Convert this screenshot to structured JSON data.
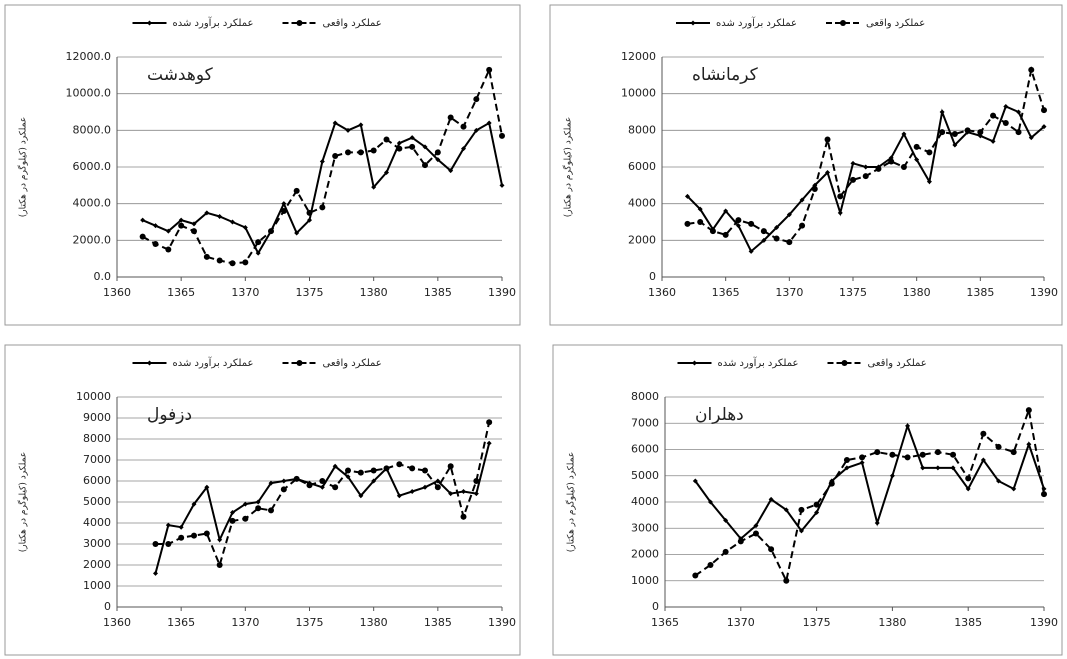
{
  "chart_data": [
    {
      "type": "line",
      "title": "کوهدشت",
      "y_label": "عملکرد (کیلوگرم در هکتار)",
      "legend": "top",
      "grid": true,
      "x": [
        1362,
        1363,
        1364,
        1365,
        1366,
        1367,
        1368,
        1369,
        1370,
        1371,
        1372,
        1373,
        1374,
        1375,
        1376,
        1377,
        1378,
        1379,
        1380,
        1381,
        1382,
        1383,
        1384,
        1385,
        1386,
        1387,
        1388,
        1389,
        1390
      ],
      "xlim": [
        1360,
        1390
      ],
      "xticks": [
        1360,
        1365,
        1370,
        1375,
        1380,
        1385,
        1390
      ],
      "ylim": [
        0,
        12000
      ],
      "yticks": [
        {
          "value": 0,
          "label": "0.0"
        },
        {
          "value": 2000,
          "label": "2000.0"
        },
        {
          "value": 4000,
          "label": "4000.0"
        },
        {
          "value": 6000,
          "label": "6000.0"
        },
        {
          "value": 8000,
          "label": "8000.0"
        },
        {
          "value": 10000,
          "label": "10000.0"
        },
        {
          "value": 12000,
          "label": "12000.0"
        }
      ],
      "series": [
        {
          "name": "عملکرد برآورد شده",
          "color": "#000000",
          "style": "solid",
          "values": [
            3100,
            2800,
            2500,
            3100,
            2900,
            3500,
            3300,
            3000,
            2700,
            1300,
            2500,
            4000,
            2400,
            3100,
            6300,
            8400,
            8000,
            8300,
            4900,
            5700,
            7300,
            7600,
            7100,
            6400,
            5800,
            7000,
            8000,
            8400,
            5000
          ]
        },
        {
          "name": "عملکرد واقعی",
          "color": "#000000",
          "style": "dashed",
          "values": [
            2200,
            1800,
            1500,
            2800,
            2500,
            1100,
            900,
            750,
            800,
            1900,
            2500,
            3600,
            4700,
            3500,
            3800,
            6600,
            6800,
            6800,
            6900,
            7500,
            7000,
            7100,
            6100,
            6800,
            8700,
            8200,
            9700,
            11300,
            7700
          ]
        }
      ]
    },
    {
      "type": "line",
      "title": "کرمانشاه",
      "y_label": "عملکرد (کیلوگرم در هکتار)",
      "legend": "top",
      "grid": true,
      "x": [
        1362,
        1363,
        1364,
        1365,
        1366,
        1367,
        1368,
        1369,
        1370,
        1371,
        1372,
        1373,
        1374,
        1375,
        1376,
        1377,
        1378,
        1379,
        1380,
        1381,
        1382,
        1383,
        1384,
        1385,
        1386,
        1387,
        1388,
        1389,
        1390
      ],
      "xlim": [
        1360,
        1390
      ],
      "xticks": [
        1360,
        1365,
        1370,
        1375,
        1380,
        1385,
        1390
      ],
      "ylim": [
        0,
        12000
      ],
      "yticks": [
        0,
        2000,
        4000,
        6000,
        8000,
        10000,
        12000
      ],
      "series": [
        {
          "name": "عملکرد برآورد شده",
          "color": "#000000",
          "style": "solid",
          "values": [
            4400,
            3700,
            2600,
            3600,
            2800,
            1400,
            2000,
            2700,
            3400,
            4200,
            5000,
            5700,
            3500,
            6200,
            6000,
            6000,
            6500,
            7800,
            6400,
            5200,
            9000,
            7200,
            7900,
            7700,
            7400,
            9300,
            9000,
            7600,
            8200
          ]
        },
        {
          "name": "عملکرد واقعی",
          "color": "#000000",
          "style": "dashed",
          "values": [
            2900,
            3000,
            2500,
            2300,
            3100,
            2900,
            2500,
            2100,
            1900,
            2800,
            4800,
            7500,
            4400,
            5300,
            5500,
            5900,
            6300,
            6000,
            7100,
            6800,
            7900,
            7800,
            8000,
            7900,
            8800,
            8400,
            7900,
            11300,
            9100
          ]
        }
      ]
    },
    {
      "type": "line",
      "title": "دزفول",
      "y_label": "عملکرد (کیلوگرم در هکتار)",
      "legend": "top",
      "grid": true,
      "x": [
        1363,
        1364,
        1365,
        1366,
        1367,
        1368,
        1369,
        1370,
        1371,
        1372,
        1373,
        1374,
        1375,
        1376,
        1377,
        1378,
        1379,
        1380,
        1381,
        1382,
        1383,
        1384,
        1385,
        1386,
        1387,
        1388,
        1389
      ],
      "xlim": [
        1360,
        1390
      ],
      "xticks": [
        1360,
        1365,
        1370,
        1375,
        1380,
        1385,
        1390
      ],
      "ylim": [
        0,
        10000
      ],
      "yticks": [
        0,
        1000,
        2000,
        3000,
        4000,
        5000,
        6000,
        7000,
        8000,
        9000,
        10000
      ],
      "series": [
        {
          "name": "عملکرد برآورد شده",
          "color": "#000000",
          "style": "solid",
          "values": [
            1600,
            3900,
            3800,
            4900,
            5700,
            3200,
            4500,
            4900,
            5000,
            5900,
            6000,
            6100,
            5900,
            5700,
            6700,
            6200,
            5300,
            6000,
            6600,
            5300,
            5500,
            5700,
            6000,
            5400,
            5500,
            5400,
            7800
          ]
        },
        {
          "name": "عملکرد واقعی",
          "color": "#000000",
          "style": "dashed",
          "values": [
            3000,
            3000,
            3300,
            3400,
            3500,
            2000,
            4100,
            4200,
            4700,
            4600,
            5600,
            6100,
            5800,
            6000,
            5700,
            6500,
            6400,
            6500,
            6600,
            6800,
            6600,
            6500,
            5700,
            6700,
            4300,
            6000,
            8800
          ]
        }
      ]
    },
    {
      "type": "line",
      "title": "دهلران",
      "y_label": "عملکرد (کیلوگرم در هکتار)",
      "legend": "top",
      "grid": true,
      "x": [
        1367,
        1368,
        1369,
        1370,
        1371,
        1372,
        1373,
        1374,
        1375,
        1376,
        1377,
        1378,
        1379,
        1380,
        1381,
        1382,
        1383,
        1384,
        1385,
        1386,
        1387,
        1388,
        1389,
        1390
      ],
      "xlim": [
        1365,
        1390
      ],
      "xticks": [
        1365,
        1370,
        1375,
        1380,
        1385,
        1390
      ],
      "ylim": [
        0,
        8000
      ],
      "yticks": [
        0,
        1000,
        2000,
        3000,
        4000,
        5000,
        6000,
        7000,
        8000
      ],
      "series": [
        {
          "name": "عملکرد برآورد شده",
          "color": "#000000",
          "style": "solid",
          "values": [
            4800,
            4000,
            3300,
            2600,
            3100,
            4100,
            3700,
            2900,
            3600,
            4800,
            5300,
            5500,
            3200,
            5000,
            6900,
            5300,
            5300,
            5300,
            4500,
            5600,
            4800,
            4500,
            6200,
            4500
          ]
        },
        {
          "name": "عملکرد واقعی",
          "color": "#000000",
          "style": "dashed",
          "values": [
            1200,
            1600,
            2100,
            2500,
            2800,
            2200,
            1000,
            3700,
            3900,
            4700,
            5600,
            5700,
            5900,
            5800,
            5700,
            5800,
            5900,
            5800,
            4900,
            6600,
            6100,
            5900,
            7500,
            4300
          ]
        }
      ]
    }
  ]
}
